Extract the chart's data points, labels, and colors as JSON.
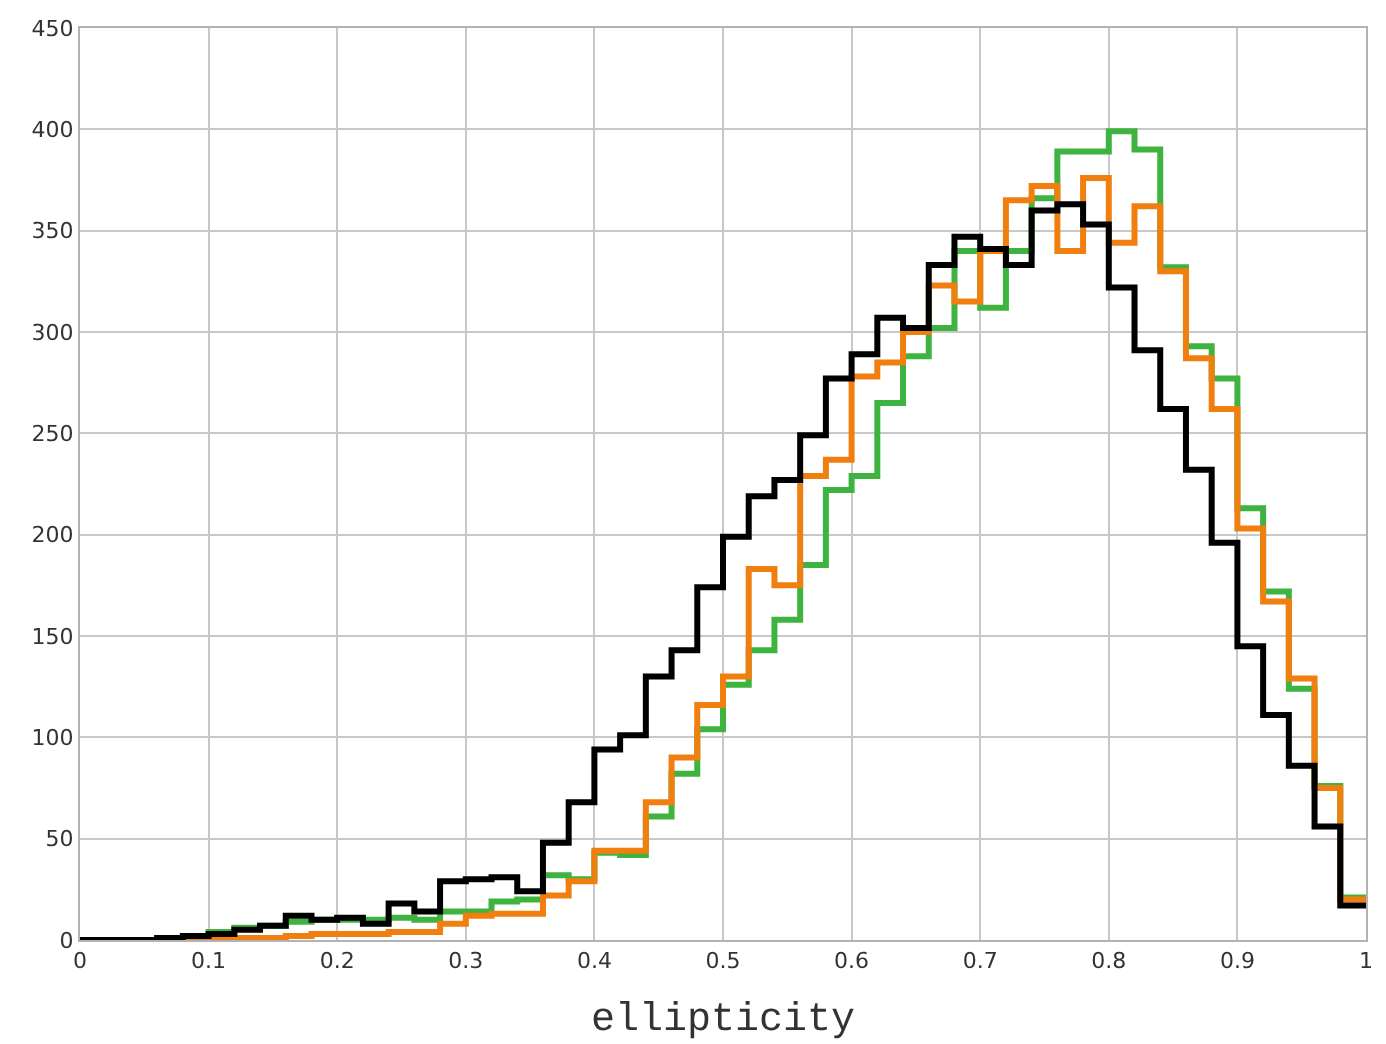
{
  "chart_data": {
    "type": "histogram",
    "xlabel": "ellipticity",
    "bins": [
      0,
      0.02,
      0.04,
      0.06,
      0.08,
      0.1,
      0.12,
      0.14,
      0.16,
      0.18,
      0.2,
      0.22,
      0.24,
      0.26,
      0.28,
      0.3,
      0.32,
      0.34,
      0.36,
      0.38,
      0.4,
      0.42,
      0.44,
      0.46,
      0.48,
      0.5,
      0.52,
      0.54,
      0.56,
      0.58,
      0.6,
      0.62,
      0.64,
      0.66,
      0.68,
      0.7,
      0.72,
      0.74,
      0.76,
      0.78,
      0.8,
      0.82,
      0.84,
      0.86,
      0.88,
      0.9,
      0.92,
      0.94,
      0.96,
      0.98,
      1
    ],
    "series": [
      {
        "color": "#3fb33f",
        "values": [
          0,
          0,
          0,
          1,
          2,
          4,
          6,
          7,
          9,
          10,
          10,
          10,
          11,
          10,
          14,
          14,
          19,
          20,
          32,
          30,
          43,
          42,
          61,
          82,
          104,
          126,
          143,
          158,
          185,
          222,
          229,
          265,
          288,
          302,
          340,
          312,
          340,
          366,
          389,
          389,
          399,
          390,
          332,
          293,
          277,
          213,
          172,
          124,
          76,
          21
        ]
      },
      {
        "color": "#f07f0f",
        "values": [
          0,
          0,
          0,
          0,
          0,
          0,
          1,
          1,
          2,
          3,
          3,
          3,
          4,
          4,
          8,
          12,
          13,
          13,
          22,
          29,
          44,
          44,
          68,
          90,
          116,
          130,
          183,
          175,
          229,
          237,
          278,
          285,
          300,
          323,
          315,
          340,
          365,
          372,
          340,
          376,
          344,
          362,
          330,
          287,
          262,
          203,
          167,
          129,
          75,
          20
        ]
      },
      {
        "color": "#000000",
        "values": [
          0,
          0,
          0,
          1,
          2,
          3,
          5,
          7,
          12,
          10,
          11,
          8,
          18,
          14,
          29,
          30,
          31,
          24,
          48,
          68,
          94,
          101,
          130,
          143,
          174,
          199,
          219,
          227,
          249,
          277,
          289,
          307,
          302,
          333,
          347,
          341,
          333,
          360,
          363,
          353,
          322,
          291,
          262,
          232,
          196,
          145,
          111,
          86,
          56,
          17
        ]
      }
    ],
    "xlim": [
      0,
      1
    ],
    "xticks": [
      0,
      0.1,
      0.2,
      0.3,
      0.4,
      0.5,
      0.6,
      0.7,
      0.8,
      0.9,
      1
    ],
    "ylim": [
      0,
      450
    ],
    "yticks": [
      0,
      50,
      100,
      150,
      200,
      250,
      300,
      350,
      400,
      450
    ],
    "grid": true
  }
}
